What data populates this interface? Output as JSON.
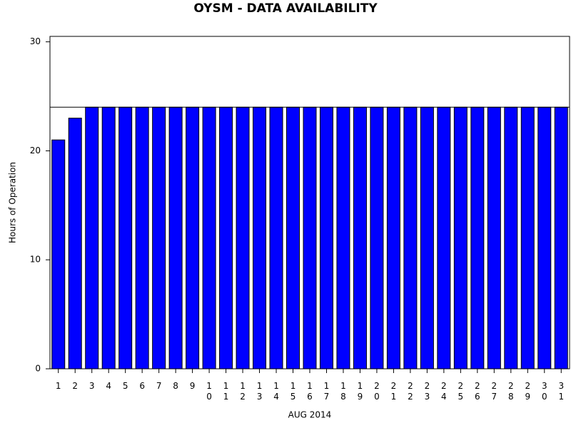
{
  "chart_data": {
    "type": "bar",
    "title": "OYSM - DATA AVAILABILITY",
    "x_label": "AUG 2014",
    "y_label": "Hours of Operation",
    "categories": [
      "1",
      "2",
      "3",
      "4",
      "5",
      "6",
      "7",
      "8",
      "9",
      "10",
      "11",
      "12",
      "13",
      "14",
      "15",
      "16",
      "17",
      "18",
      "19",
      "20",
      "21",
      "22",
      "23",
      "24",
      "25",
      "26",
      "27",
      "28",
      "29",
      "30",
      "31"
    ],
    "values": [
      21,
      23,
      24,
      24,
      24,
      24,
      24,
      24,
      24,
      24,
      24,
      24,
      24,
      24,
      24,
      24,
      24,
      24,
      24,
      24,
      24,
      24,
      24,
      24,
      24,
      24,
      24,
      24,
      24,
      24,
      24
    ],
    "color": "#0000ff",
    "reference_line": 24,
    "ylim": [
      0,
      30.5
    ],
    "yticks": [
      0,
      10,
      20,
      30
    ]
  }
}
